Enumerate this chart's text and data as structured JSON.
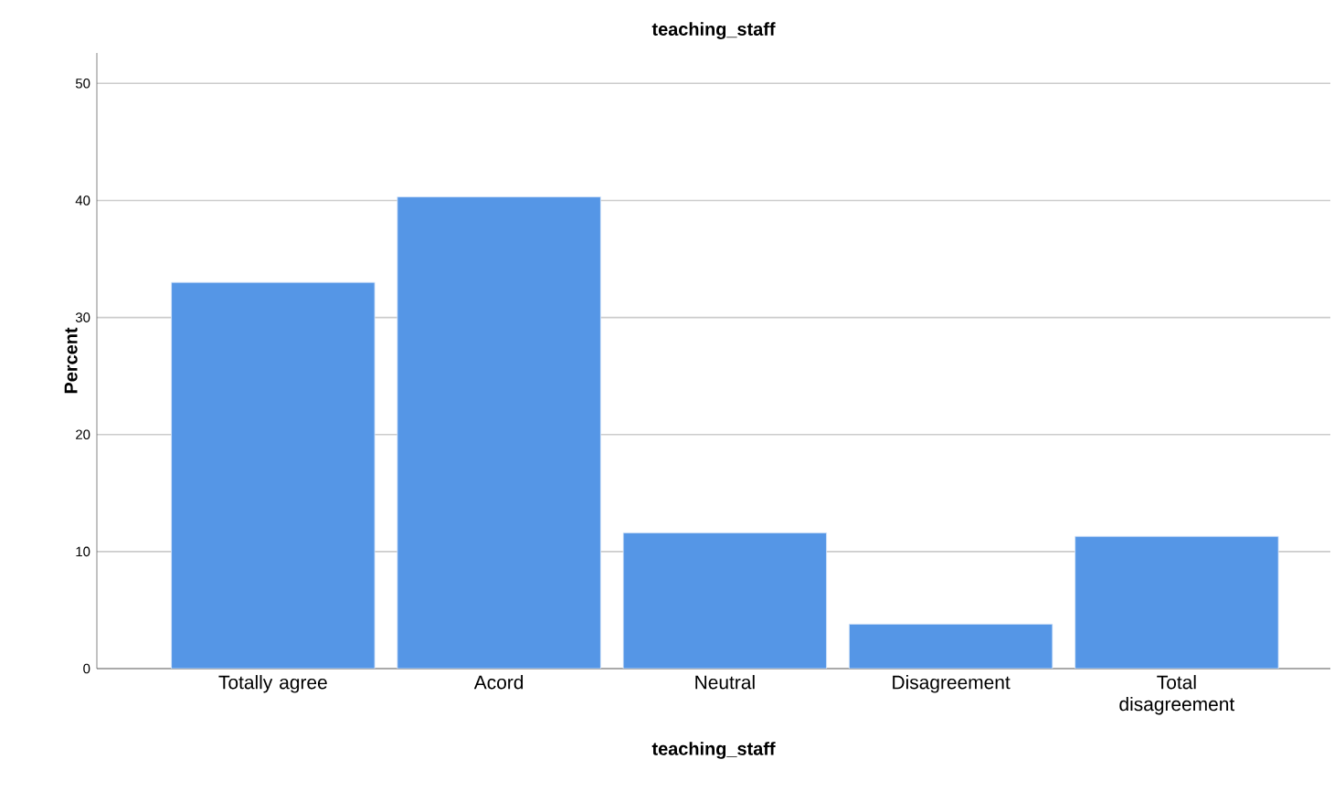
{
  "chart_data": {
    "type": "bar",
    "title": "teaching_staff",
    "xlabel": "teaching_staff",
    "ylabel": "Percent",
    "categories": [
      "Totally agree",
      "Acord",
      "Neutral",
      "Disagreement",
      "Total disagreement"
    ],
    "values": [
      33.0,
      40.3,
      11.6,
      3.8,
      11.3
    ],
    "color": "#5596e6",
    "ylim": [
      0,
      52.6
    ],
    "yticks": [
      0,
      10,
      20,
      30,
      40,
      50
    ],
    "grid": "y"
  }
}
